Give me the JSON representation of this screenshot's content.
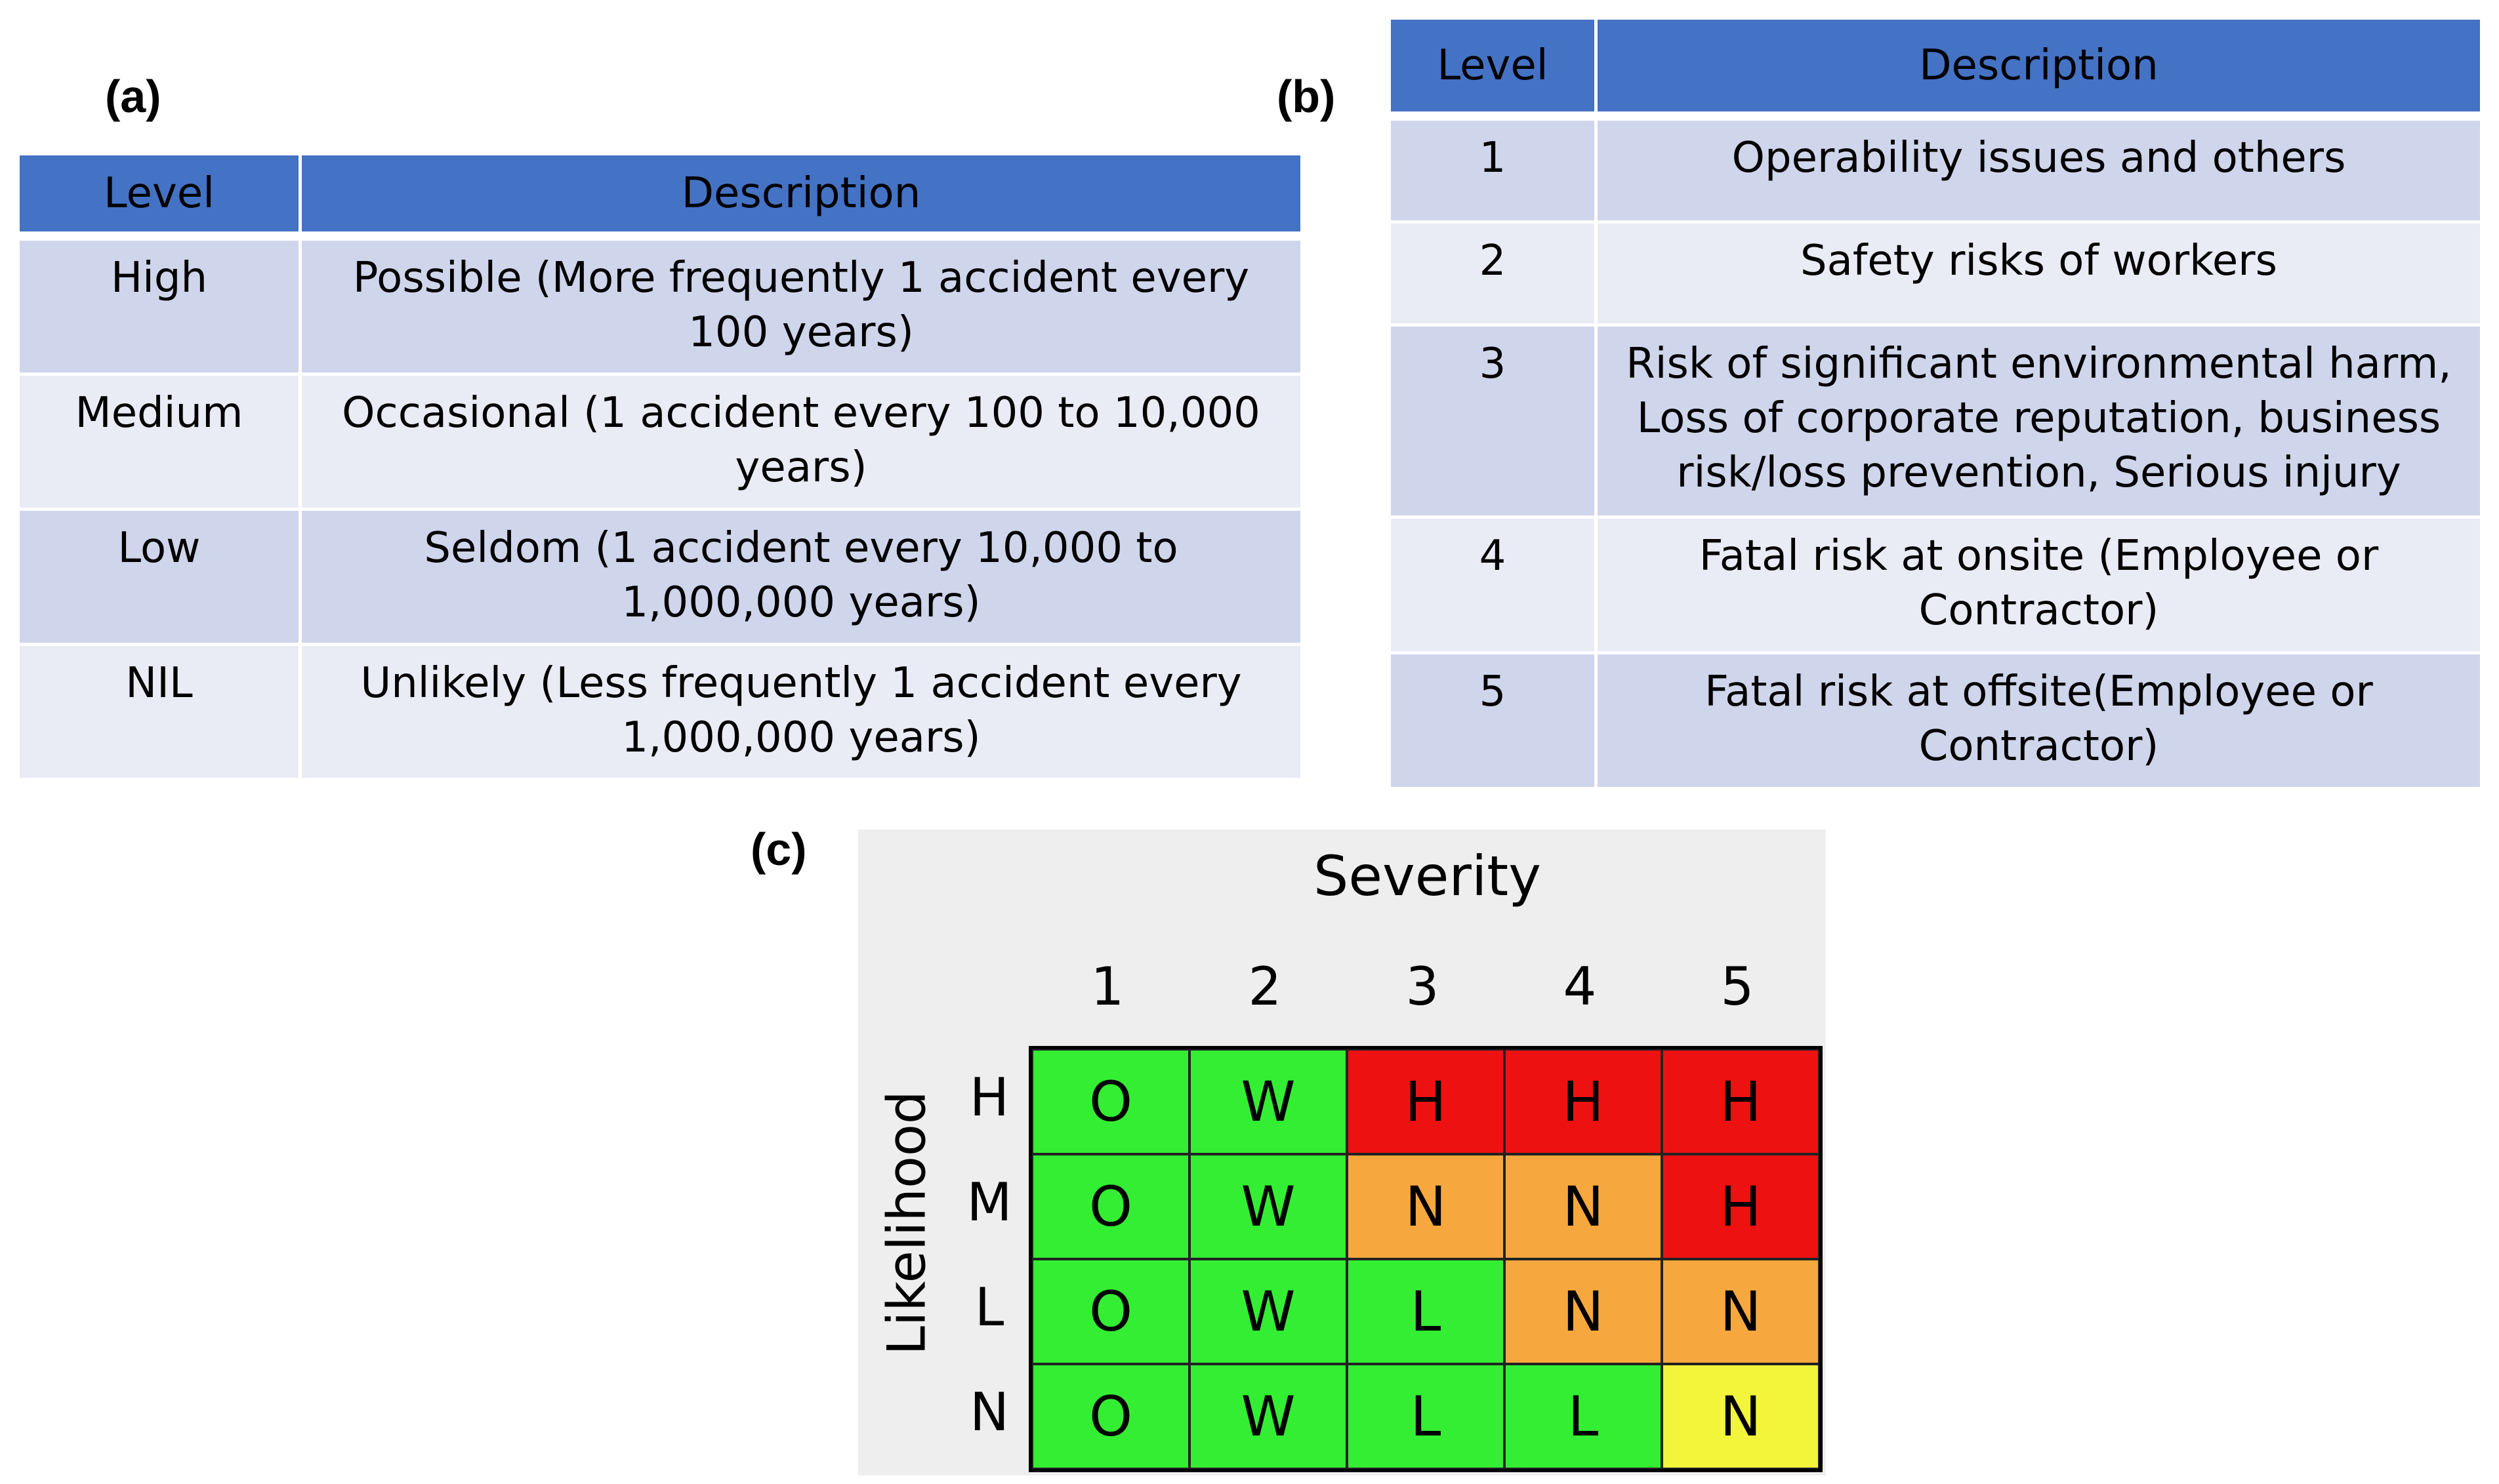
{
  "panel_labels": {
    "a": "(a)",
    "b": "(b)",
    "c": "(c)"
  },
  "table_a": {
    "headers": [
      "Level",
      "Description"
    ],
    "rows": [
      {
        "level": "High",
        "description": "Possible (More frequently 1 accident every 100 years)"
      },
      {
        "level": "Medium",
        "description": "Occasional (1 accident every 100 to 10,000 years)"
      },
      {
        "level": "Low",
        "description": "Seldom (1 accident every 10,000 to 1,000,000 years)"
      },
      {
        "level": "NIL",
        "description": "Unlikely (Less frequently 1 accident every 1,000,000 years)"
      }
    ]
  },
  "table_b": {
    "headers": [
      "Level",
      "Description"
    ],
    "rows": [
      {
        "level": "1",
        "description": "Operability issues and others"
      },
      {
        "level": "2",
        "description": "Safety risks of workers"
      },
      {
        "level": "3",
        "description": "Risk of significant environmental harm, Loss of corporate reputation, business risk/loss prevention, Serious injury"
      },
      {
        "level": "4",
        "description": "Fatal risk at onsite (Employee or Contractor)"
      },
      {
        "level": "5",
        "description": "Fatal risk at offsite(Employee or Contractor)"
      }
    ]
  },
  "matrix": {
    "x_title": "Severity",
    "y_title": "Likelihood",
    "columns": [
      "1",
      "2",
      "3",
      "4",
      "5"
    ],
    "rows": [
      "H",
      "M",
      "L",
      "N"
    ],
    "cells": [
      [
        "O",
        "W",
        "H",
        "H",
        "H"
      ],
      [
        "O",
        "W",
        "N",
        "N",
        "H"
      ],
      [
        "O",
        "W",
        "L",
        "N",
        "N"
      ],
      [
        "O",
        "W",
        "L",
        "L",
        "N"
      ]
    ],
    "colors": {
      "O": "#33ee33",
      "W": "#33ee33",
      "L": "#33ee33",
      "H": "#ee1111",
      "N": "#f6a83e",
      "N_low": "#f2f53a"
    },
    "cell_colors": [
      [
        "#33ee33",
        "#33ee33",
        "#ee1111",
        "#ee1111",
        "#ee1111"
      ],
      [
        "#33ee33",
        "#33ee33",
        "#f6a83e",
        "#f6a83e",
        "#ee1111"
      ],
      [
        "#33ee33",
        "#33ee33",
        "#33ee33",
        "#f6a83e",
        "#f6a83e"
      ],
      [
        "#33ee33",
        "#33ee33",
        "#33ee33",
        "#33ee33",
        "#f2f53a"
      ]
    ]
  }
}
